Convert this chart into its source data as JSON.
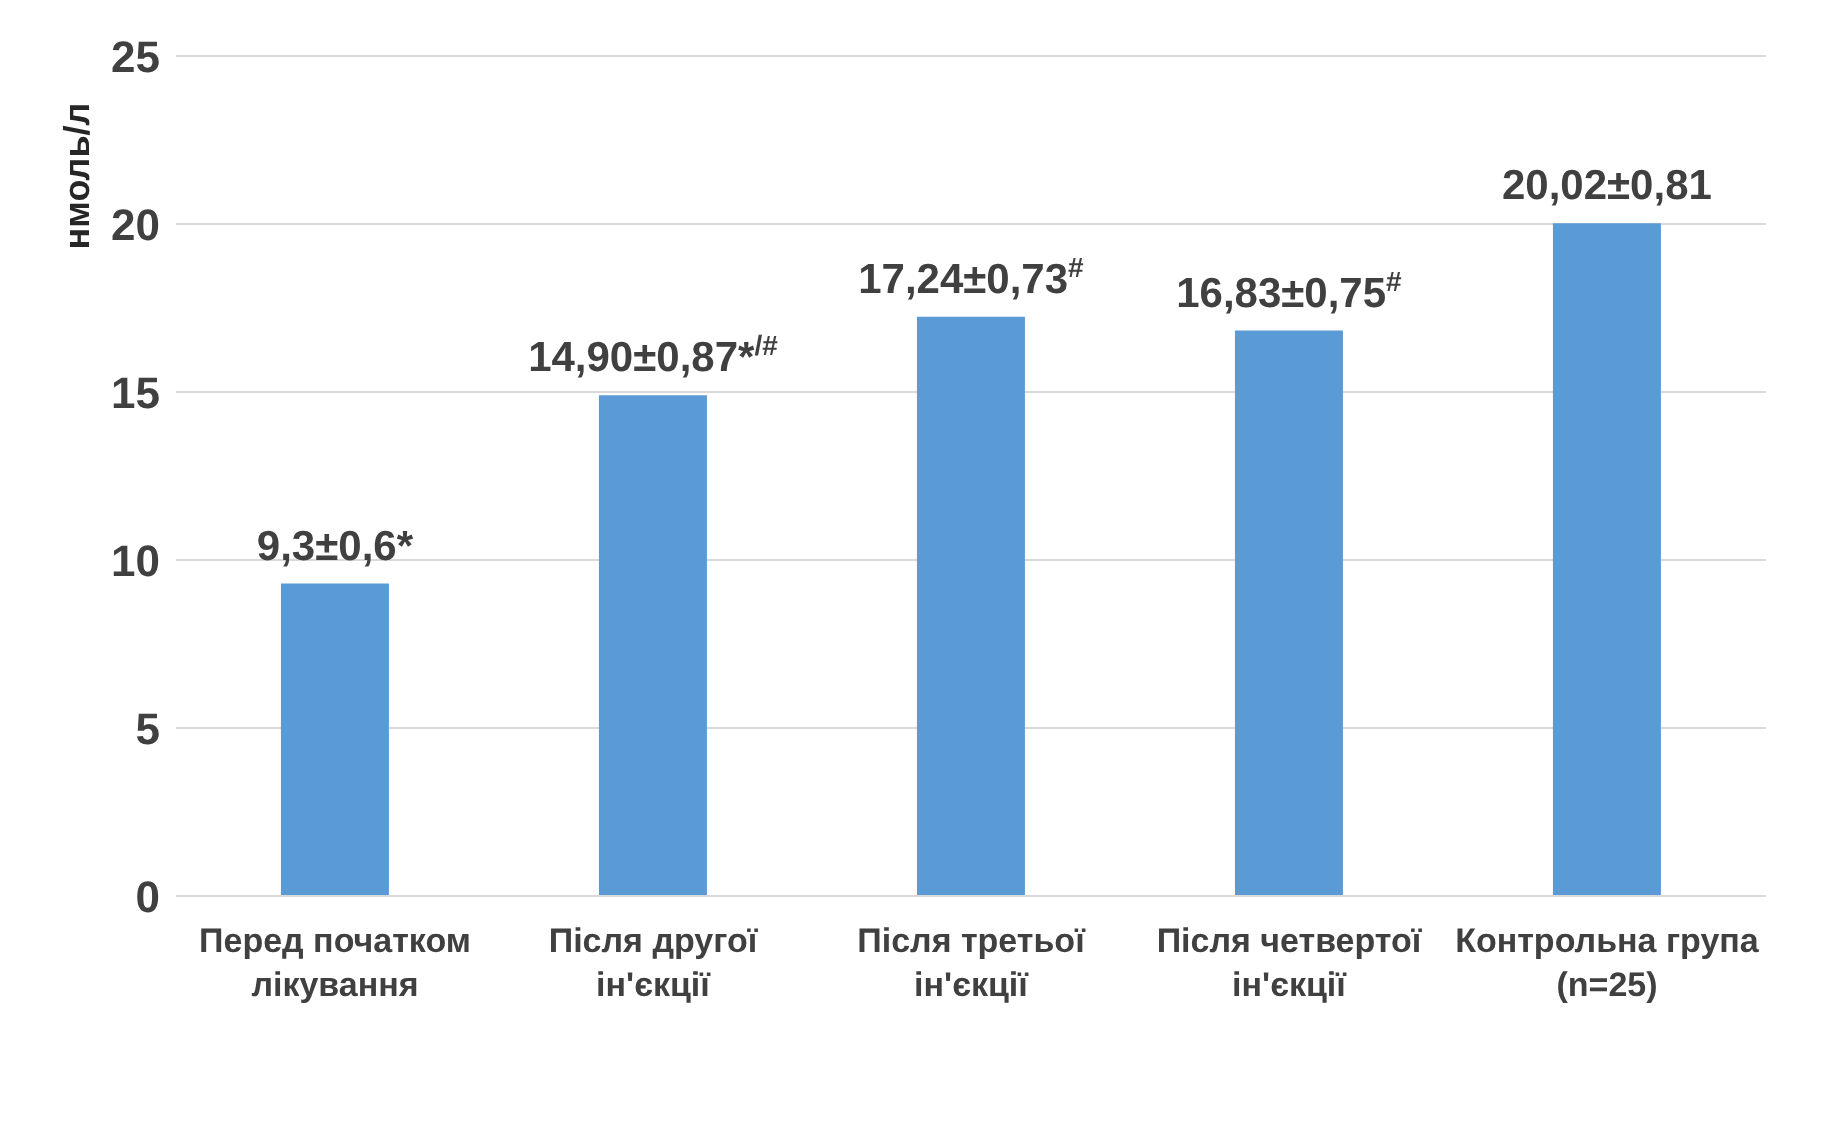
{
  "chart_data": {
    "type": "bar",
    "ylabel": "нмоль/л",
    "categories": [
      "Перед початком лікування",
      "Після другої ін'єкції",
      "Після третьої ін'єкції",
      "Після четвертої ін'єкції",
      "Контрольна група (n=25)"
    ],
    "values": [
      9.3,
      14.9,
      17.24,
      16.83,
      20.02
    ],
    "color": "#5b9bd5",
    "value_labels": [
      "9,3±0,6*",
      "14,90±0,87*$^{/#}$",
      "17,24±0,73$^{#}$",
      "16,83±0,75$^{#}$",
      "20,02±0,81"
    ],
    "ylim": [
      0,
      25
    ],
    "yticks": [
      0,
      5,
      10,
      15,
      20,
      25
    ],
    "grid": "y"
  }
}
